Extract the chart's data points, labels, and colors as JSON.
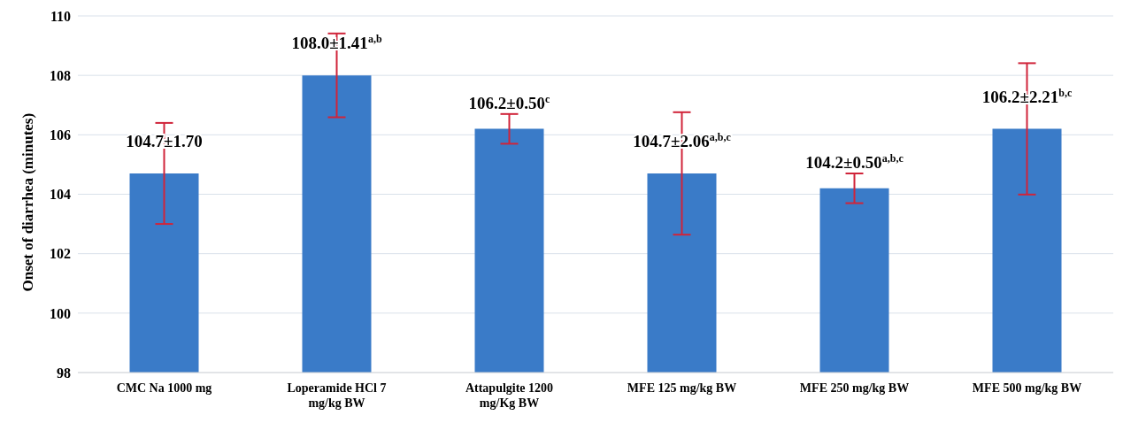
{
  "chart_data": {
    "type": "bar",
    "ylabel": "Onset of diarrhea (minutes)",
    "categories": [
      "CMC Na 1000 mg",
      "Loperamide HCl 7 mg/kg BW",
      "Attapulgite 1200 mg/Kg BW",
      "MFE 125 mg/kg BW",
      "MFE 250 mg/kg BW",
      "MFE 500 mg/kg BW"
    ],
    "values": [
      104.7,
      108.0,
      106.2,
      104.7,
      104.2,
      106.2
    ],
    "errors": [
      1.7,
      1.41,
      0.5,
      2.06,
      0.5,
      2.21
    ],
    "value_labels": [
      "104.7±1.70",
      "108.0±1.41$^{a,b}$",
      "106.2±0.50$^{c}$",
      "104.7±2.06$^{a,b,c}$",
      "104.2±0.50$^{a,b,c}$",
      "106.2±2.21$^{b,c}$"
    ],
    "color": "#3a7bc8",
    "ylim": [
      98,
      110
    ],
    "yticks": [
      98,
      100,
      102,
      104,
      106,
      108,
      110
    ],
    "grid": "y"
  }
}
